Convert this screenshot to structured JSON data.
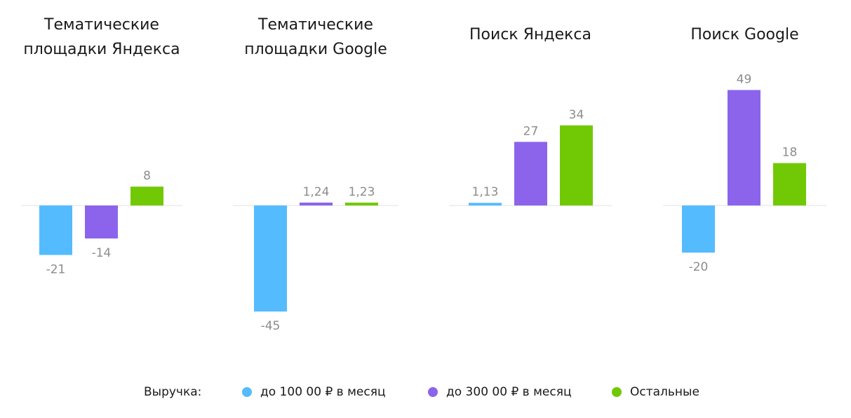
{
  "colors": {
    "series_1": "#55bbff",
    "series_2": "#8c64eb",
    "series_3": "#71c905"
  },
  "legend": {
    "title": "Выручка:",
    "items": [
      {
        "label": "до 100 00 ₽ в месяц",
        "color": "#55bbff"
      },
      {
        "label": "до 300 00 ₽ в месяц",
        "color": "#8c64eb"
      },
      {
        "label": "Остальные",
        "color": "#71c905"
      }
    ]
  },
  "chart_data": [
    {
      "type": "bar",
      "title": "Тематические площадки Яндекса",
      "title_lines": [
        "Тематические",
        "площадки Яндекса"
      ],
      "categories": [
        "до 100 00 ₽ в месяц",
        "до 300 00 ₽ в месяц",
        "Остальные"
      ],
      "values": [
        -21,
        -14,
        8
      ],
      "value_labels": [
        "-21",
        "-14",
        "8"
      ]
    },
    {
      "type": "bar",
      "title": "Тематические площадки Google",
      "title_lines": [
        "Тематические",
        "площадки Google"
      ],
      "categories": [
        "до 100 00 ₽ в месяц",
        "до 300 00 ₽ в месяц",
        "Остальные"
      ],
      "values": [
        -45,
        1.24,
        1.23
      ],
      "value_labels": [
        "-45",
        "1,24",
        "1,23"
      ]
    },
    {
      "type": "bar",
      "title": "Поиск Яндекса",
      "title_lines": [
        "Поиск Яндекса"
      ],
      "categories": [
        "до 100 00 ₽ в месяц",
        "до 300 00 ₽ в месяц",
        "Остальные"
      ],
      "values": [
        1.13,
        27,
        34
      ],
      "value_labels": [
        "1,13",
        "27",
        "34"
      ]
    },
    {
      "type": "bar",
      "title": "Поиск Google",
      "title_lines": [
        "Поиск Google"
      ],
      "categories": [
        "до 100 00 ₽ в месяц",
        "до 300 00 ₽ в месяц",
        "Остальные"
      ],
      "values": [
        -20,
        49,
        18
      ],
      "value_labels": [
        "-20",
        "49",
        "18"
      ]
    }
  ]
}
